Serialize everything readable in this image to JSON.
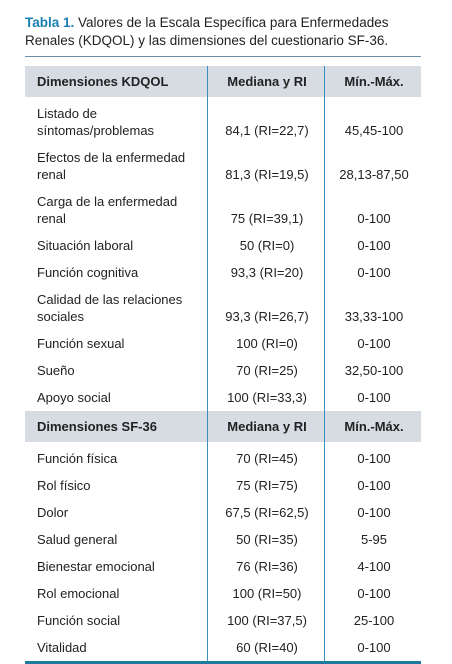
{
  "caption": {
    "label": "Tabla 1.",
    "text": "Valores de la Escala Específica para Enfermedades Renales (KDQOL) y las dimensiones del cuestionario SF-36."
  },
  "table": {
    "sections": [
      {
        "header": [
          "Dimensiones KDQOL",
          "Mediana y RI",
          "Mín.-Máx."
        ],
        "rows": [
          [
            "Listado de síntomas/problemas",
            "84,1 (RI=22,7)",
            "45,45-100"
          ],
          [
            "Efectos de la enfermedad renal",
            "81,3 (RI=19,5)",
            "28,13-87,50"
          ],
          [
            "Carga de la enfermedad renal",
            "75 (RI=39,1)",
            "0-100"
          ],
          [
            "Situación laboral",
            "50 (RI=0)",
            "0-100"
          ],
          [
            "Función cognitiva",
            "93,3 (RI=20)",
            "0-100"
          ],
          [
            "Calidad de las relaciones sociales",
            "93,3 (RI=26,7)",
            "33,33-100"
          ],
          [
            "Función sexual",
            "100 (RI=0)",
            "0-100"
          ],
          [
            "Sueño",
            "70 (RI=25)",
            "32,50-100"
          ],
          [
            "Apoyo social",
            "100 (RI=33,3)",
            "0-100"
          ]
        ]
      },
      {
        "header": [
          "Dimensiones SF-36",
          "Mediana y RI",
          "Mín.-Máx."
        ],
        "rows": [
          [
            "Función física",
            "70 (RI=45)",
            "0-100"
          ],
          [
            "Rol físico",
            "75 (RI=75)",
            "0-100"
          ],
          [
            "Dolor",
            "67,5 (RI=62,5)",
            "0-100"
          ],
          [
            "Salud general",
            "50 (RI=35)",
            "5-95"
          ],
          [
            "Bienestar emocional",
            "76 (RI=36)",
            "4-100"
          ],
          [
            "Rol emocional",
            "100 (RI=50)",
            "0-100"
          ],
          [
            "Función social",
            "100 (RI=37,5)",
            "25-100"
          ],
          [
            "Vitalidad",
            "60 (RI=40)",
            "0-100"
          ]
        ]
      }
    ]
  }
}
